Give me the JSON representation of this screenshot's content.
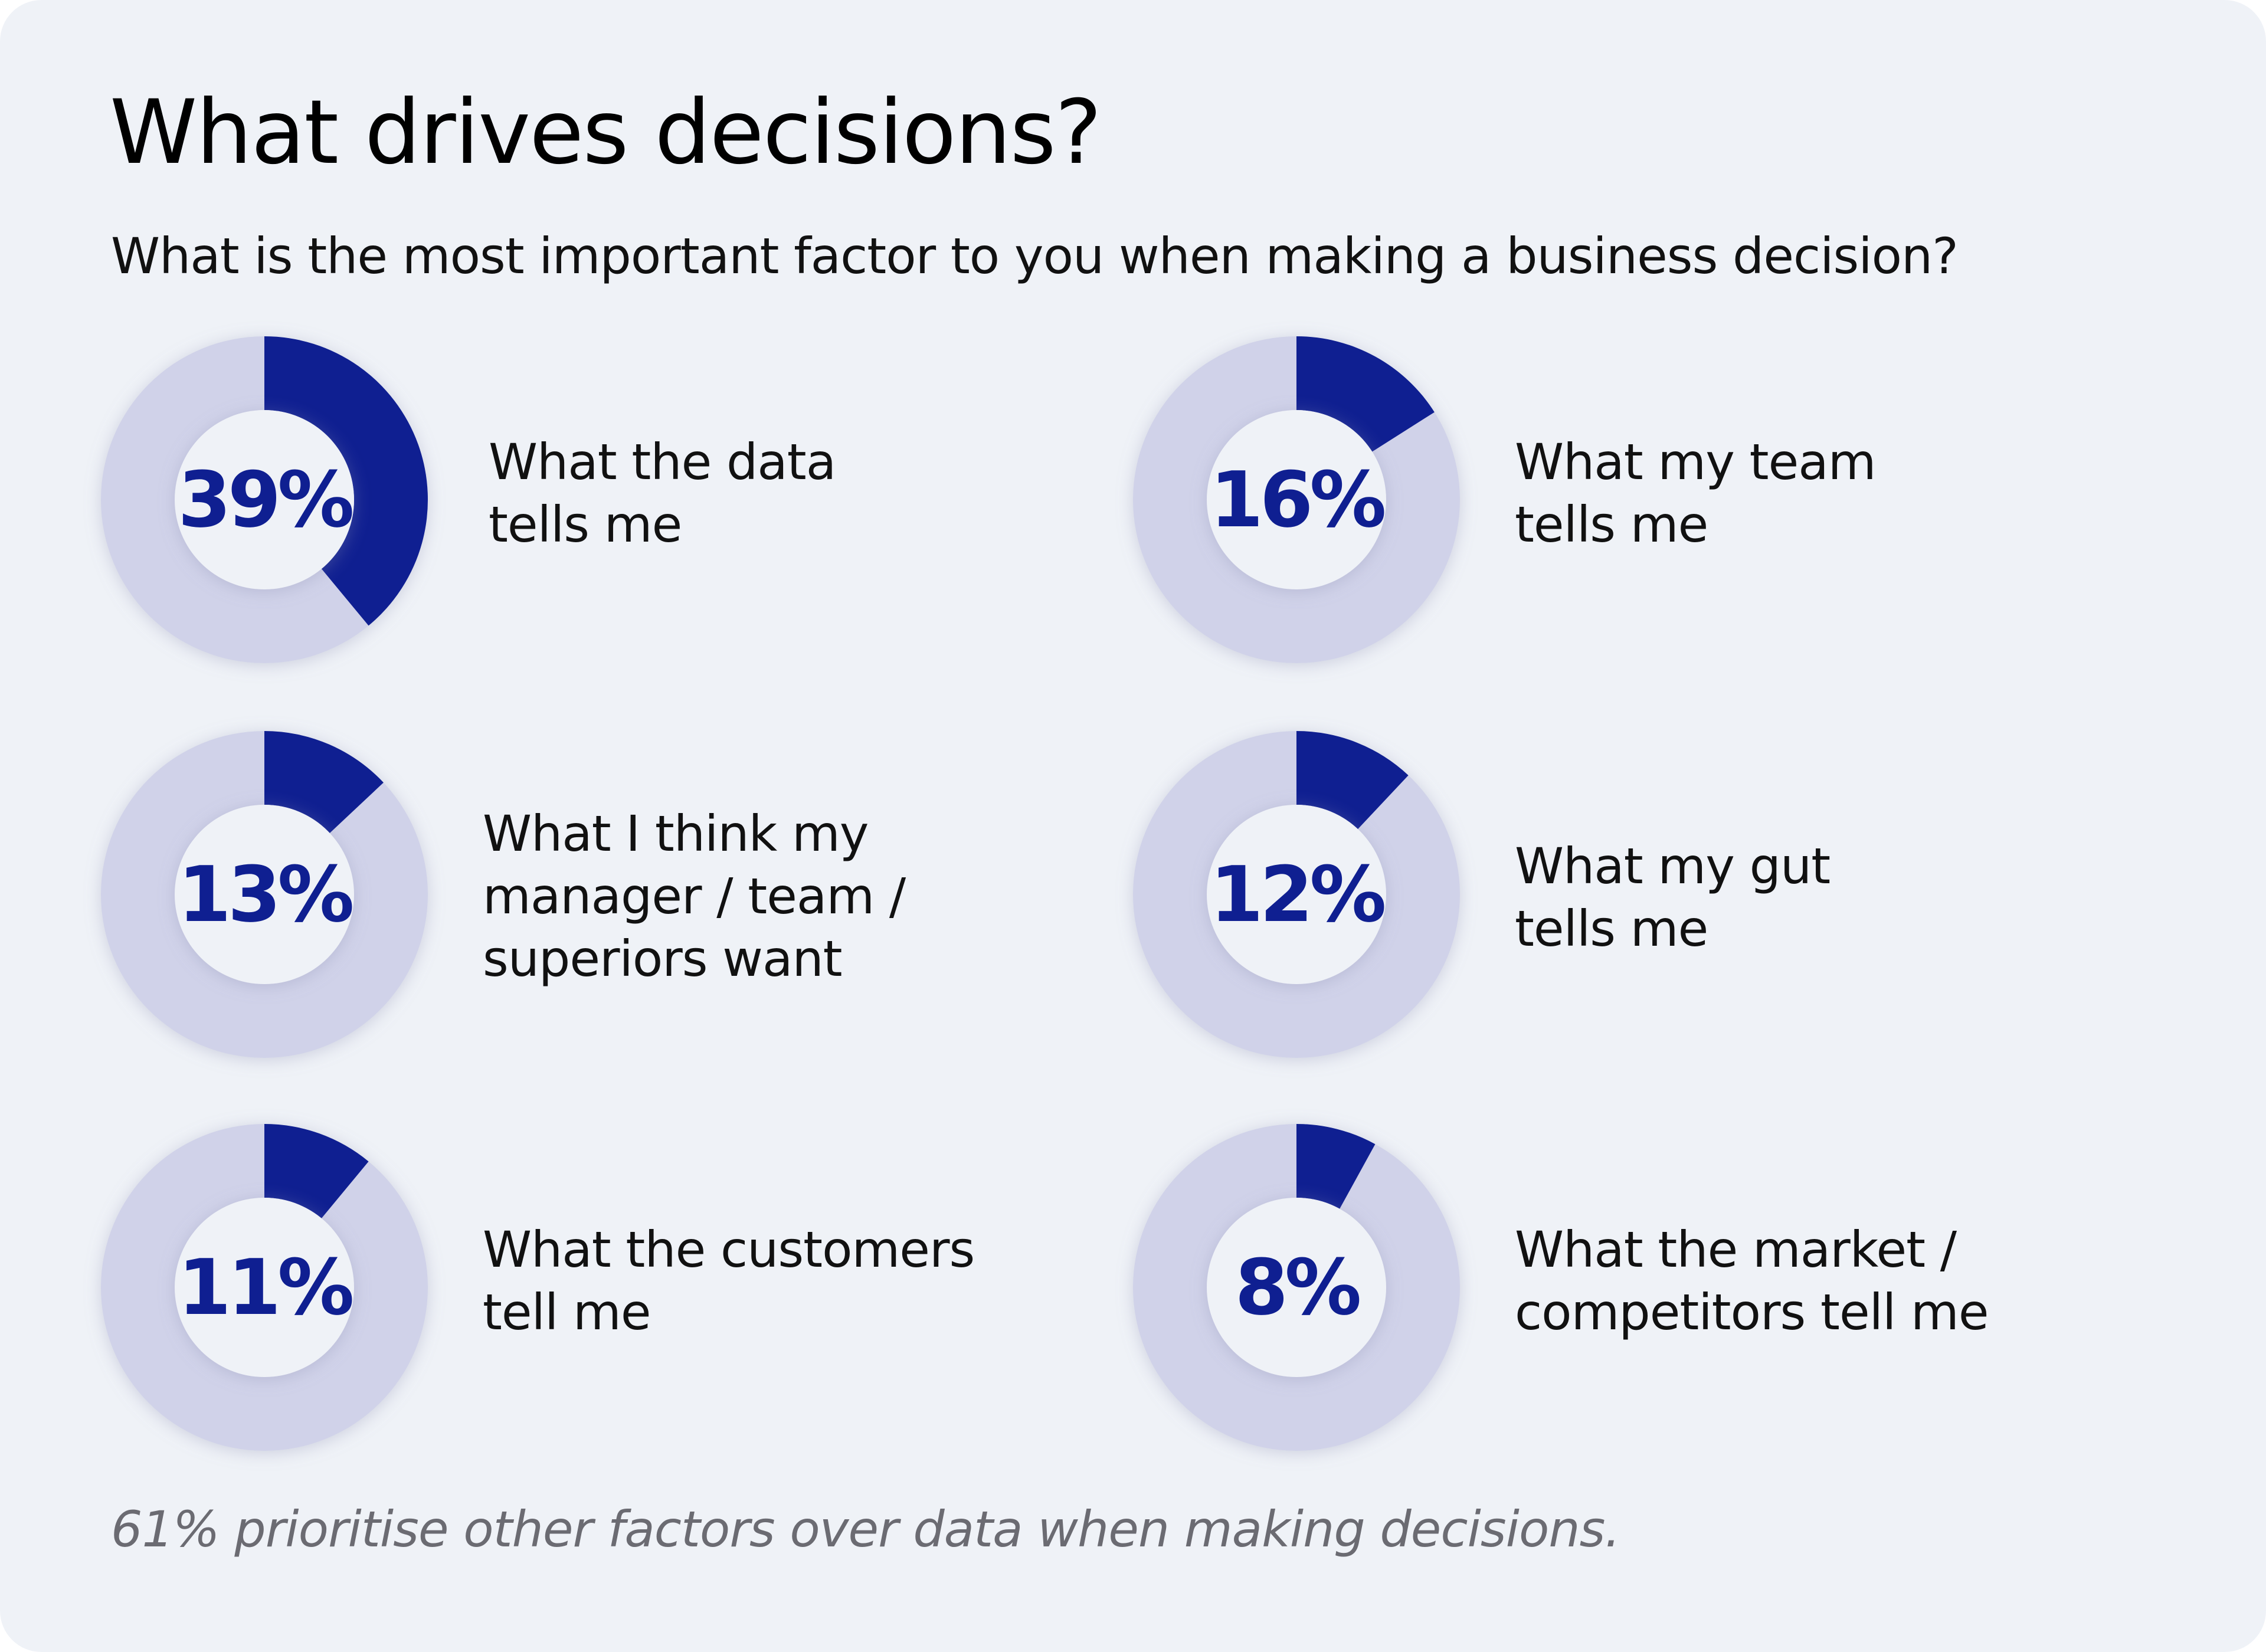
{
  "title": "What drives decisions?",
  "subtitle": "What is the most important factor to you when making a business decision?",
  "footer": "61% prioritise other factors over data when making decisions.",
  "colors": {
    "filled": "#0f1f91",
    "track": "#d0d2e9",
    "background": "#eff2f7",
    "percent_text": "#0f1f91"
  },
  "chart_data": {
    "type": "donut",
    "title": "What drives decisions?",
    "subtitle": "What is the most important factor to you when making a business decision?",
    "items": [
      {
        "label": "What the data\ntells me",
        "value": 39,
        "display": "39%"
      },
      {
        "label": "What my team\ntells me",
        "value": 16,
        "display": "16%"
      },
      {
        "label": "What I think my\nmanager / team /\nsuperiors want",
        "value": 13,
        "display": "13%"
      },
      {
        "label": "What my gut\ntells me",
        "value": 12,
        "display": "12%"
      },
      {
        "label": "What the customers\ntell me",
        "value": 11,
        "display": "11%"
      },
      {
        "label": "What the market /\ncompetitors tell me",
        "value": 8,
        "display": "8%"
      }
    ]
  }
}
